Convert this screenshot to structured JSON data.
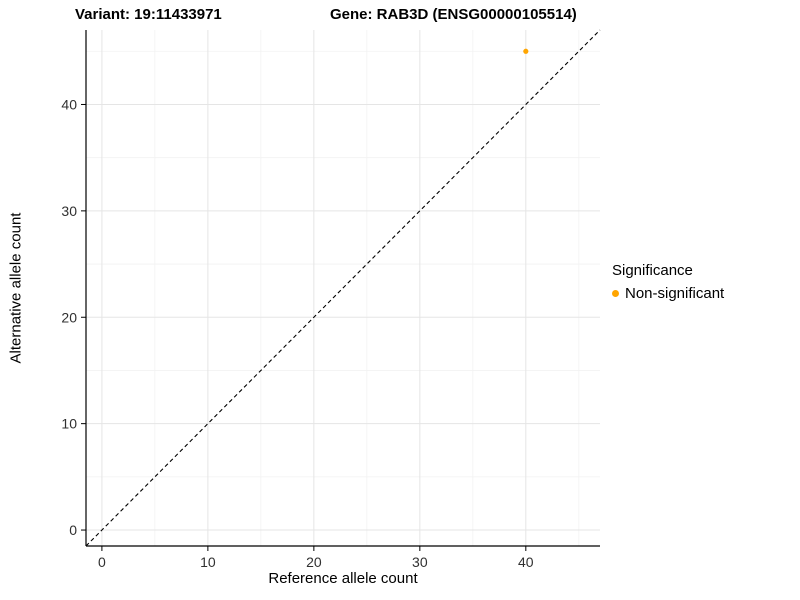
{
  "chart_data": {
    "type": "scatter",
    "titles": {
      "left": "Variant: 19:11433971",
      "right": "Gene: RAB3D (ENSG00000105514)"
    },
    "xlabel": "Reference allele count",
    "ylabel": "Alternative allele count",
    "xlim": [
      -1.5,
      47
    ],
    "ylim": [
      -1.5,
      47
    ],
    "x_ticks": [
      0,
      10,
      20,
      30,
      40
    ],
    "y_ticks": [
      0,
      10,
      20,
      30,
      40
    ],
    "x_minor_ticks": [
      5,
      15,
      25,
      35,
      45
    ],
    "y_minor_ticks": [
      5,
      15,
      25,
      35,
      45
    ],
    "grid": true,
    "identity_line": {
      "style": "dashed",
      "from": [
        -1.5,
        -1.5
      ],
      "to": [
        47,
        47
      ]
    },
    "series": [
      {
        "name": "Non-significant",
        "color": "#FFA500",
        "points": [
          {
            "x": 40,
            "y": 45
          }
        ]
      }
    ],
    "legend": {
      "title": "Significance",
      "position": "right",
      "entries": [
        {
          "label": "Non-significant",
          "color": "#FFA500"
        }
      ]
    },
    "colors": {
      "background": "#ffffff",
      "grid_major": "#e5e5e5",
      "grid_minor": "#f2f2f2",
      "axis": "#000000",
      "tick_label": "#303030"
    }
  }
}
